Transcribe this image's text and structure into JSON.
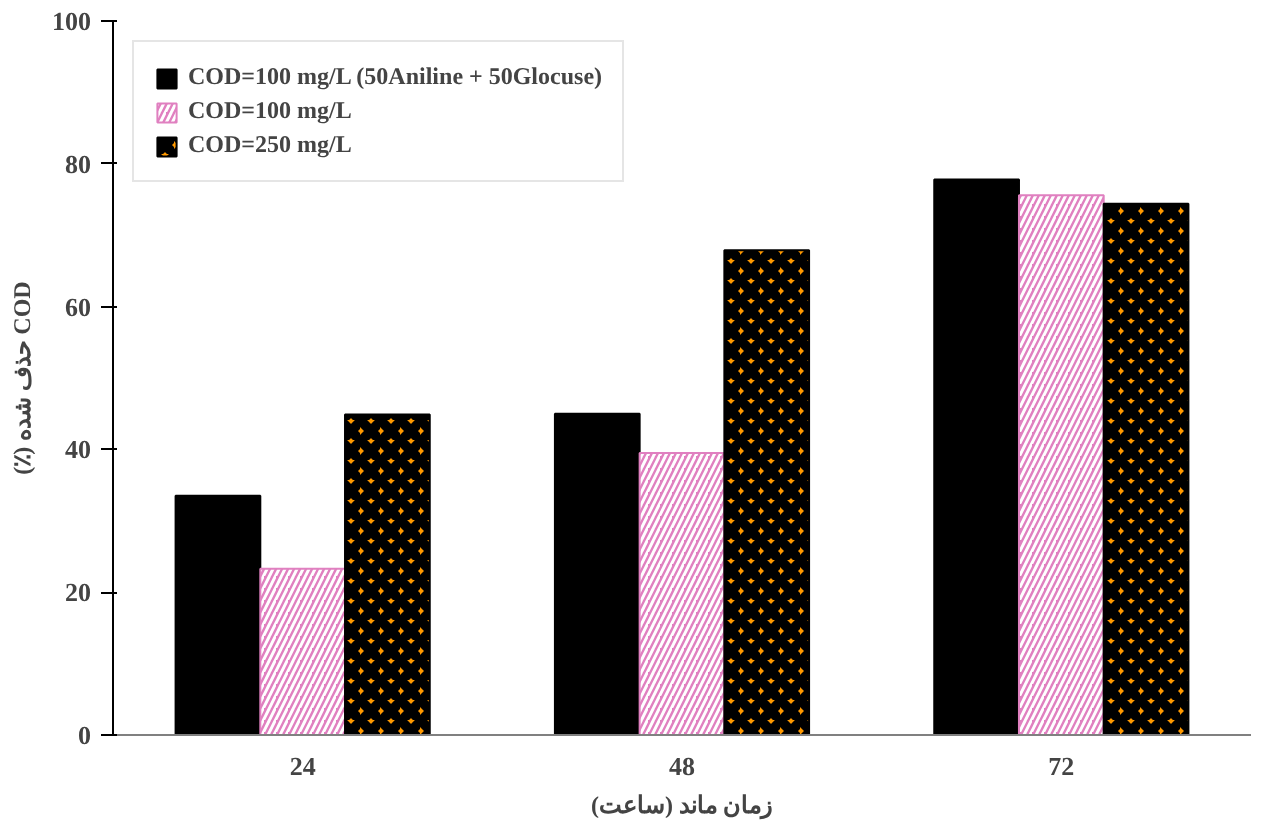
{
  "chart_data": {
    "type": "bar",
    "xlabel": "زمان ماند (ساعت)",
    "ylabel": "(٪) حذف شده COD",
    "categories": [
      "24",
      "48",
      "72"
    ],
    "series": [
      {
        "name": "COD=100 mg/L (50Aniline + 50Glocuse)",
        "color": "#000000",
        "values": [
          33.5,
          45,
          77.8
        ]
      },
      {
        "name": "COD=100 mg/L",
        "color": "#e080c0",
        "values": [
          23.3,
          39.5,
          75.6
        ]
      },
      {
        "name": "COD=250 mg/L",
        "color": "#ff9900",
        "values": [
          44.9,
          67.9,
          74.4
        ]
      }
    ],
    "ylim": [
      0,
      100
    ],
    "yticks": [
      0,
      20,
      40,
      60,
      80,
      100
    ],
    "grid": false,
    "legend": "top left"
  }
}
